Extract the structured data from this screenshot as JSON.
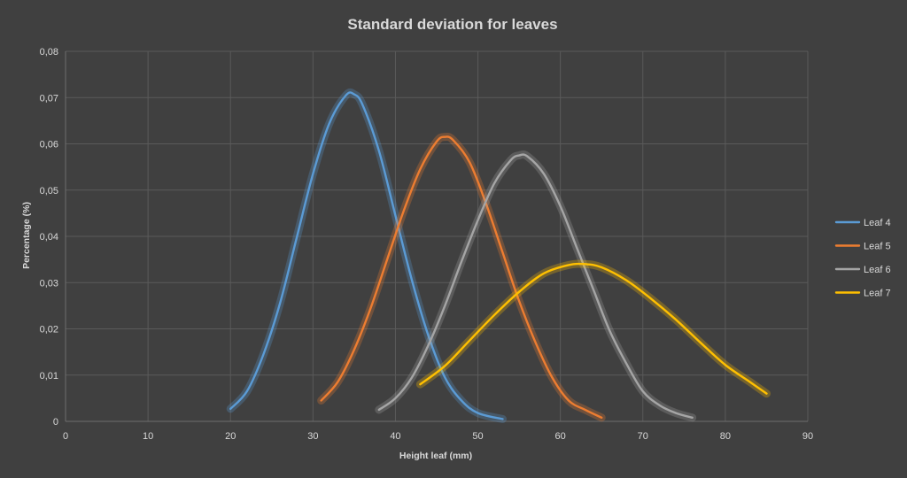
{
  "chart_data": {
    "type": "line",
    "title": "Standard deviation for leaves",
    "xlabel": "Height leaf (mm)",
    "ylabel": "Percentage (%)",
    "xlim": [
      0,
      90
    ],
    "ylim": [
      0,
      0.08
    ],
    "x_ticks": [
      "0",
      "10",
      "20",
      "30",
      "40",
      "50",
      "60",
      "70",
      "80",
      "90"
    ],
    "y_ticks": [
      "0",
      "0,01",
      "0,02",
      "0,03",
      "0,04",
      "0,05",
      "0,06",
      "0,07",
      "0,08"
    ],
    "grid": true,
    "legend_position": "right",
    "series": [
      {
        "name": "Leaf 4",
        "color": "#5b9bd5",
        "points": [
          [
            20,
            0.0027
          ],
          [
            22,
            0.0065
          ],
          [
            24,
            0.0145
          ],
          [
            26,
            0.0255
          ],
          [
            28,
            0.0395
          ],
          [
            30,
            0.0535
          ],
          [
            32,
            0.0645
          ],
          [
            34,
            0.0705
          ],
          [
            35,
            0.0707
          ],
          [
            36,
            0.0685
          ],
          [
            38,
            0.0585
          ],
          [
            40,
            0.0445
          ],
          [
            42,
            0.0305
          ],
          [
            44,
            0.0185
          ],
          [
            46,
            0.0095
          ],
          [
            48,
            0.0045
          ],
          [
            50,
            0.0018
          ],
          [
            53,
            0.0005
          ]
        ]
      },
      {
        "name": "Leaf 5",
        "color": "#ed7d31",
        "points": [
          [
            31,
            0.0045
          ],
          [
            33,
            0.0085
          ],
          [
            35,
            0.0155
          ],
          [
            37,
            0.0245
          ],
          [
            39,
            0.035
          ],
          [
            41,
            0.0455
          ],
          [
            43,
            0.0545
          ],
          [
            45,
            0.0605
          ],
          [
            46,
            0.0615
          ],
          [
            47,
            0.0608
          ],
          [
            49,
            0.056
          ],
          [
            51,
            0.047
          ],
          [
            53,
            0.0365
          ],
          [
            55,
            0.026
          ],
          [
            57,
            0.017
          ],
          [
            59,
            0.0095
          ],
          [
            61,
            0.0045
          ],
          [
            63,
            0.0025
          ],
          [
            65,
            0.0008
          ]
        ]
      },
      {
        "name": "Leaf 6",
        "color": "#a5a5a5",
        "points": [
          [
            38,
            0.0025
          ],
          [
            40,
            0.005
          ],
          [
            42,
            0.0095
          ],
          [
            44,
            0.0165
          ],
          [
            46,
            0.025
          ],
          [
            48,
            0.0345
          ],
          [
            50,
            0.0435
          ],
          [
            52,
            0.0515
          ],
          [
            54,
            0.0565
          ],
          [
            55,
            0.0575
          ],
          [
            56,
            0.0573
          ],
          [
            58,
            0.0535
          ],
          [
            60,
            0.0465
          ],
          [
            62,
            0.0375
          ],
          [
            64,
            0.0285
          ],
          [
            66,
            0.0195
          ],
          [
            68,
            0.0125
          ],
          [
            70,
            0.0065
          ],
          [
            72,
            0.0035
          ],
          [
            74,
            0.0018
          ],
          [
            76,
            0.0008
          ]
        ]
      },
      {
        "name": "Leaf 7",
        "color": "#ffc000",
        "points": [
          [
            43,
            0.008
          ],
          [
            46,
            0.012
          ],
          [
            49,
            0.0175
          ],
          [
            52,
            0.023
          ],
          [
            55,
            0.028
          ],
          [
            58,
            0.032
          ],
          [
            61,
            0.0338
          ],
          [
            63,
            0.034
          ],
          [
            65,
            0.0333
          ],
          [
            68,
            0.0305
          ],
          [
            71,
            0.0265
          ],
          [
            74,
            0.022
          ],
          [
            77,
            0.017
          ],
          [
            80,
            0.0122
          ],
          [
            83,
            0.0085
          ],
          [
            85,
            0.006
          ]
        ]
      }
    ]
  }
}
